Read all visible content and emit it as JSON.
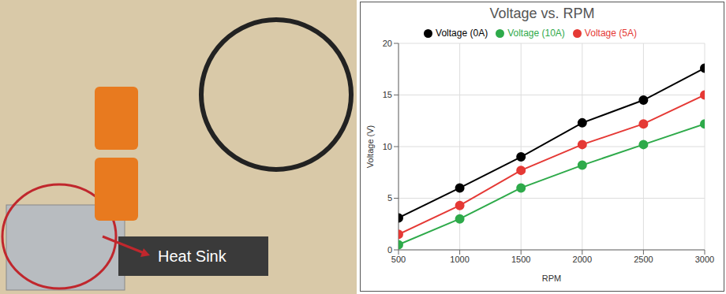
{
  "chart_data": {
    "type": "line",
    "title": "Voltage vs. RPM",
    "x_label": "RPM",
    "y_label": "Voltage (V)",
    "x": [
      500,
      1000,
      1500,
      2000,
      2500,
      3000
    ],
    "series": [
      {
        "name": "Voltage (0A)",
        "color": "#000000",
        "values": [
          3.1,
          6.0,
          9.0,
          12.3,
          14.5,
          17.6
        ]
      },
      {
        "name": "Voltage (5A)",
        "color": "#e53935",
        "values": [
          1.5,
          4.3,
          7.7,
          10.2,
          12.2,
          15.0
        ]
      },
      {
        "name": "Voltage (10A)",
        "color": "#2eaa4a",
        "values": [
          0.5,
          3.0,
          6.0,
          8.2,
          10.2,
          12.2
        ]
      }
    ],
    "xlim": [
      500,
      3000
    ],
    "xticks": [
      500,
      1000,
      1500,
      2000,
      2500,
      3000
    ],
    "ylim": [
      0,
      20
    ],
    "yticks": [
      0,
      5,
      10,
      15,
      20
    ],
    "grid": true,
    "legend": "top",
    "marker": "circle"
  },
  "image": {
    "label": "Heat Sink"
  }
}
